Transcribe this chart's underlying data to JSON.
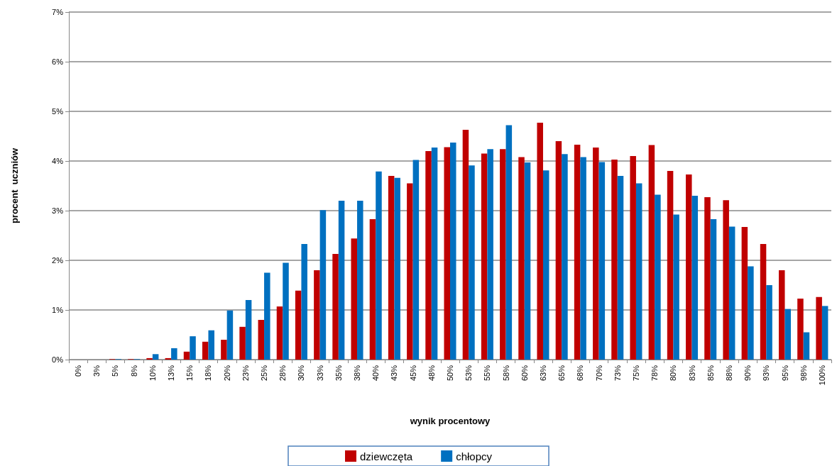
{
  "chart_data": {
    "type": "bar",
    "xlabel": "wynik procentowy",
    "ylabel": "procent  uczniów",
    "categories": [
      "0%",
      "3%",
      "5%",
      "8%",
      "10%",
      "13%",
      "15%",
      "18%",
      "20%",
      "23%",
      "25%",
      "28%",
      "30%",
      "33%",
      "35%",
      "38%",
      "40%",
      "43%",
      "45%",
      "48%",
      "50%",
      "53%",
      "55%",
      "58%",
      "60%",
      "63%",
      "65%",
      "68%",
      "70%",
      "73%",
      "75%",
      "78%",
      "80%",
      "83%",
      "85%",
      "88%",
      "90%",
      "93%",
      "95%",
      "98%",
      "100%"
    ],
    "series": [
      {
        "name": "dziewczęta",
        "color": "#c00000",
        "values": [
          0,
          0,
          0.01,
          0.01,
          0.03,
          0.03,
          0.16,
          0.36,
          0.4,
          0.66,
          0.8,
          1.07,
          1.39,
          1.8,
          2.13,
          2.44,
          2.83,
          3.7,
          3.55,
          4.2,
          4.28,
          4.63,
          4.15,
          4.24,
          4.08,
          4.77,
          4.4,
          4.33,
          4.27,
          4.03,
          4.1,
          4.32,
          3.8,
          3.73,
          3.27,
          3.21,
          2.67,
          2.33,
          1.8,
          1.23,
          1.26
        ]
      },
      {
        "name": "chłopcy",
        "color": "#0070c0",
        "values": [
          0,
          0,
          0.01,
          0.01,
          0.11,
          0.23,
          0.47,
          0.59,
          0.99,
          1.2,
          1.75,
          1.95,
          2.33,
          3.01,
          3.2,
          3.2,
          3.79,
          3.66,
          4.02,
          4.27,
          4.37,
          3.91,
          4.24,
          4.72,
          3.97,
          3.81,
          4.14,
          4.08,
          3.98,
          3.7,
          3.55,
          3.32,
          2.92,
          3.3,
          2.83,
          2.68,
          1.88,
          1.5,
          1.02,
          0.55,
          1.08
        ]
      }
    ],
    "ylim": [
      0,
      7
    ],
    "yticks": [
      {
        "value": 0,
        "label": "0%"
      },
      {
        "value": 1,
        "label": "1%"
      },
      {
        "value": 2,
        "label": "2%"
      },
      {
        "value": 3,
        "label": "3%"
      },
      {
        "value": 4,
        "label": "4%"
      },
      {
        "value": 5,
        "label": "5%"
      },
      {
        "value": 6,
        "label": "6%"
      },
      {
        "value": 7,
        "label": "7%"
      }
    ],
    "grid": "y",
    "legend": "bottom"
  }
}
